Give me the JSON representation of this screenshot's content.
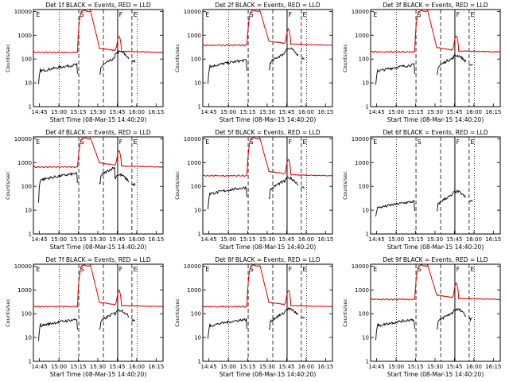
{
  "chart_data": {
    "type": "line",
    "y_label": "Counts/sec",
    "x_label": "Start Time (08-Mar-15 14:40:20)",
    "x_ticks": [
      "14:45",
      "15:00",
      "15:15",
      "15:30",
      "15:45",
      "16:00",
      "16:15"
    ],
    "x_tick_minutes": [
      4.67,
      19.67,
      34.67,
      49.67,
      64.67,
      79.67,
      94.67
    ],
    "xlim_minutes": [
      0,
      100
    ],
    "y_ticks": [
      "1",
      "10",
      "100",
      "1000",
      "10000"
    ],
    "ylim": [
      1,
      12000
    ],
    "y_scale": "log",
    "colors": {
      "black_series": "#000000",
      "red_series": "#e00000"
    },
    "markers": {
      "dotted_lines_min": [
        20,
        80
      ],
      "dashed_lines_min": [
        35,
        54,
        76
      ],
      "solid_line_min": [
        65
      ],
      "letters": [
        {
          "label": "E",
          "x_min": 2
        },
        {
          "label": "S",
          "x_min": 36
        },
        {
          "label": "F",
          "x_min": 66
        },
        {
          "label": "E",
          "x_min": 77
        }
      ]
    },
    "panels": [
      {
        "id": "1f",
        "title": "Det 1f BLACK = Events, RED = LLD",
        "red_base": 190,
        "red_peak": 11000,
        "black_base": 45,
        "black_start": 8,
        "black_late": 200
      },
      {
        "id": "2f",
        "title": "Det 2f BLACK = Events, RED = LLD",
        "red_base": 380,
        "red_peak": 11000,
        "black_base": 70,
        "black_start": 10,
        "black_late": 270
      },
      {
        "id": "3f",
        "title": "Det 3f BLACK = Events, RED = LLD",
        "red_base": 200,
        "red_peak": 11000,
        "black_base": 45,
        "black_start": 8,
        "black_late": 140
      },
      {
        "id": "4f",
        "title": "Det 4f BLACK = Events, RED = LLD",
        "red_base": 650,
        "red_peak": 11000,
        "black_base": 270,
        "black_start": 20,
        "black_late": 300
      },
      {
        "id": "5f",
        "title": "Det 5f BLACK = Events, RED = LLD",
        "red_base": 280,
        "red_peak": 11000,
        "black_base": 70,
        "black_start": 10,
        "black_late": 220
      },
      {
        "id": "6f",
        "title": "Det 6f BLACK = Events, RED = LLD",
        "red_base": null,
        "red_peak": null,
        "black_base": 18,
        "black_start": 5,
        "black_late": 60
      },
      {
        "id": "7f",
        "title": "Det 7f BLACK = Events, RED = LLD",
        "red_base": 200,
        "red_peak": 11000,
        "black_base": 45,
        "black_start": 8,
        "black_late": 140
      },
      {
        "id": "8f",
        "title": "Det 8f BLACK = Events, RED = LLD",
        "red_base": 200,
        "red_peak": 11000,
        "black_base": 45,
        "black_start": 8,
        "black_late": 160
      },
      {
        "id": "9f",
        "title": "Det 9f BLACK = Events, RED = LLD",
        "red_base": 400,
        "red_peak": 11000,
        "black_base": 45,
        "black_start": 8,
        "black_late": 150
      }
    ]
  }
}
